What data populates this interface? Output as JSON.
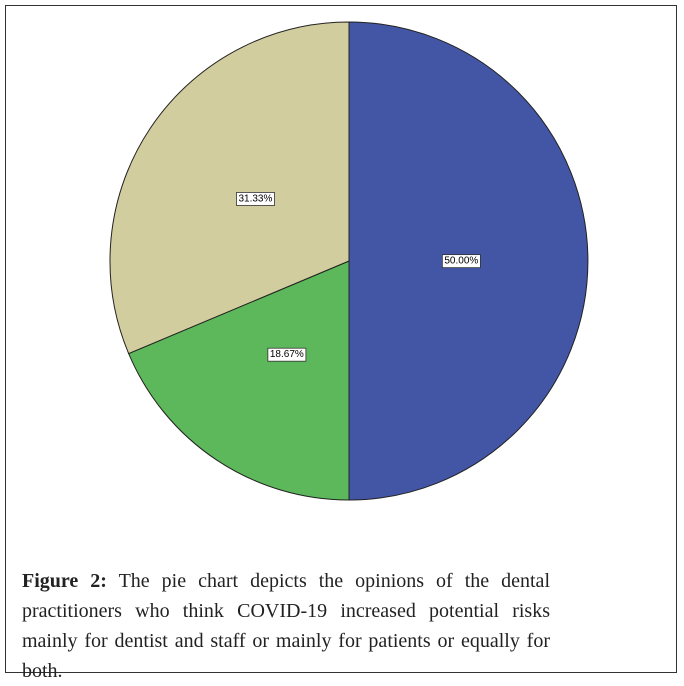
{
  "chart_data": {
    "type": "pie",
    "categories": [
      null,
      null,
      null
    ],
    "values": [
      50.0,
      18.67,
      31.33
    ],
    "value_labels": [
      "50.00%",
      "18.67%",
      "31.33%"
    ],
    "colors": [
      "#4355a5",
      "#5cb85a",
      "#d2cd9e"
    ]
  },
  "caption": {
    "label": "Figure 2:",
    "text": "The pie chart depicts the opinions of the dental practitioners who think COVID-19 increased potential risks mainly for dentist and staff or mainly for patients or equally for both."
  }
}
